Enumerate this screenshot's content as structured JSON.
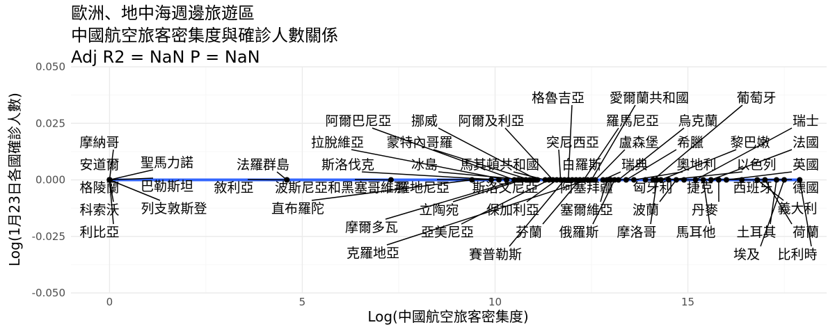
{
  "chart_data": {
    "type": "scatter",
    "title_lines": [
      "歐洲、地中海週邊旅遊區",
      "中國航空旅客密集度與確診人數關係",
      " Adj R2 =  NaN  P = NaN"
    ],
    "xlabel": "Log(中國航空旅客密集度)",
    "ylabel": "Log(1月23日各國確診人數)",
    "xlim": [
      -1,
      18.6
    ],
    "ylim": [
      -0.05,
      0.05
    ],
    "x_ticks": [
      0,
      5,
      10,
      15
    ],
    "x_tick_labels": [
      "0",
      "5",
      "10",
      "15"
    ],
    "y_ticks": [
      -0.05,
      -0.025,
      0,
      0.025,
      0.05
    ],
    "y_tick_labels": [
      "-0.050",
      "-0.025",
      "0.000",
      "0.025",
      "0.050"
    ],
    "grid": true,
    "fit_line": {
      "x": [
        0,
        17.9
      ],
      "y": [
        0,
        0
      ],
      "color": "#3366FF"
    },
    "point_color": "#000000",
    "points": [
      {
        "label": "摩納哥",
        "x": 0,
        "y": 0
      },
      {
        "label": "安道爾",
        "x": 0,
        "y": 0
      },
      {
        "label": "格陵蘭",
        "x": 0,
        "y": 0
      },
      {
        "label": "科索沃",
        "x": 0,
        "y": 0
      },
      {
        "label": "利比亞",
        "x": 0,
        "y": 0
      },
      {
        "label": "聖馬力諾",
        "x": 0,
        "y": 0
      },
      {
        "label": "巴勒斯坦",
        "x": 0,
        "y": 0
      },
      {
        "label": "列支敦斯登",
        "x": 0,
        "y": 0
      },
      {
        "label": "法羅群島",
        "x": 4.6,
        "y": 0
      },
      {
        "label": "敘利亞",
        "x": 4.6,
        "y": 0
      },
      {
        "label": "波斯尼亞和黑塞哥維那",
        "x": 7.3,
        "y": 0
      },
      {
        "label": "直布羅陀",
        "x": 9.4,
        "y": 0
      },
      {
        "label": "斯洛伐克",
        "x": 10.1,
        "y": 0
      },
      {
        "label": "拉脫維亞",
        "x": 10.3,
        "y": 0
      },
      {
        "label": "阿爾巴尼亞",
        "x": 10.5,
        "y": 0
      },
      {
        "label": "冰島",
        "x": 10.8,
        "y": 0
      },
      {
        "label": "蒙特內哥羅",
        "x": 10.9,
        "y": 0
      },
      {
        "label": "挪威",
        "x": 11.1,
        "y": 0
      },
      {
        "label": "馬其頓共和國",
        "x": 11.3,
        "y": 0
      },
      {
        "label": "阿爾及利亞",
        "x": 11.5,
        "y": 0
      },
      {
        "label": "突尼西亞",
        "x": 11.7,
        "y": 0
      },
      {
        "label": "格魯吉亞",
        "x": 11.9,
        "y": 0
      },
      {
        "label": "白羅斯",
        "x": 12.0,
        "y": 0
      },
      {
        "label": "阿塞拜疆",
        "x": 12.1,
        "y": 0
      },
      {
        "label": "羅馬尼亞",
        "x": 12.3,
        "y": 0
      },
      {
        "label": "愛爾蘭共和國",
        "x": 12.5,
        "y": 0
      },
      {
        "label": "盧森堡",
        "x": 12.6,
        "y": 0
      },
      {
        "label": "瑞典",
        "x": 12.8,
        "y": 0
      },
      {
        "label": "匈牙利",
        "x": 13.0,
        "y": 0
      },
      {
        "label": "烏克蘭",
        "x": 13.2,
        "y": 0
      },
      {
        "label": "希臘",
        "x": 13.4,
        "y": 0
      },
      {
        "label": "奧地利",
        "x": 13.6,
        "y": 0
      },
      {
        "label": "捷克",
        "x": 13.9,
        "y": 0
      },
      {
        "label": "葡萄牙",
        "x": 14.1,
        "y": 0
      },
      {
        "label": "黎巴嫩",
        "x": 14.3,
        "y": 0
      },
      {
        "label": "以色列",
        "x": 14.5,
        "y": 0
      },
      {
        "label": "西班牙",
        "x": 14.9,
        "y": 0
      },
      {
        "label": "瑞士",
        "x": 15.2,
        "y": 0
      },
      {
        "label": "法國",
        "x": 15.6,
        "y": 0
      },
      {
        "label": "英國",
        "x": 16.0,
        "y": 0
      },
      {
        "label": "德國",
        "x": 16.4,
        "y": 0
      },
      {
        "label": "義大利",
        "x": 16.8,
        "y": 0
      },
      {
        "label": "荷蘭",
        "x": 17.0,
        "y": 0
      },
      {
        "label": "土耳其",
        "x": 17.3,
        "y": 0
      },
      {
        "label": "埃及",
        "x": 17.5,
        "y": 0
      },
      {
        "label": "比利時",
        "x": 17.9,
        "y": 0
      },
      {
        "label": "丹麥",
        "x": 15.8,
        "y": 0
      },
      {
        "label": "馬耳他",
        "x": 15.4,
        "y": 0
      },
      {
        "label": "波蘭",
        "x": 14.7,
        "y": 0
      },
      {
        "label": "摩洛哥",
        "x": 14.2,
        "y": 0
      },
      {
        "label": "塞爾維亞",
        "x": 12.9,
        "y": 0
      },
      {
        "label": "俄羅斯",
        "x": 13.1,
        "y": 0
      },
      {
        "label": "芬蘭",
        "x": 12.2,
        "y": 0
      },
      {
        "label": "賽普勒斯",
        "x": 11.8,
        "y": 0
      },
      {
        "label": "保加利亞",
        "x": 11.6,
        "y": 0
      },
      {
        "label": "亞美尼亞",
        "x": 11.4,
        "y": 0
      },
      {
        "label": "斯洛文尼亞",
        "x": 11.0,
        "y": 0
      },
      {
        "label": "立陶宛",
        "x": 10.7,
        "y": 0
      },
      {
        "label": "摩爾多瓦",
        "x": 10.6,
        "y": 0
      },
      {
        "label": "克羅地亞",
        "x": 12.4,
        "y": 0
      },
      {
        "label": "亞美尼亞2",
        "x": 9.9,
        "y": 0
      }
    ]
  }
}
